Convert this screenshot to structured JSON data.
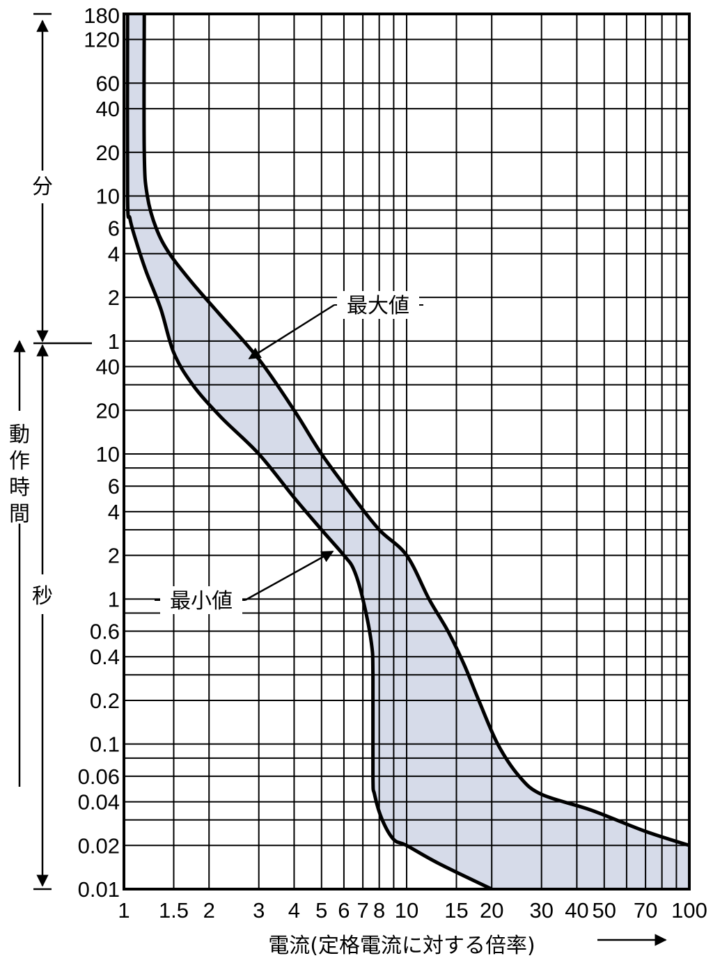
{
  "chart_data": {
    "type": "area",
    "xlabel": "電流(定格電流に対する倍率)",
    "x_scale": "log",
    "xlim": [
      1,
      100
    ],
    "y_scale": "log",
    "ylim_seconds": [
      0.01,
      10800
    ],
    "x_ticks": [
      {
        "value": 1,
        "label": "1"
      },
      {
        "value": 1.5,
        "label": "1.5"
      },
      {
        "value": 2,
        "label": "2"
      },
      {
        "value": 3,
        "label": "3"
      },
      {
        "value": 4,
        "label": "4"
      },
      {
        "value": 5,
        "label": "5"
      },
      {
        "value": 6,
        "label": "6"
      },
      {
        "value": 7,
        "label": "7"
      },
      {
        "value": 8,
        "label": "8"
      },
      {
        "value": 10,
        "label": "10"
      },
      {
        "value": 15,
        "label": "15"
      },
      {
        "value": 20,
        "label": "20"
      },
      {
        "value": 30,
        "label": "30"
      },
      {
        "value": 40,
        "label": "40"
      },
      {
        "value": 50,
        "label": "50"
      },
      {
        "value": 70,
        "label": "70"
      },
      {
        "value": 100,
        "label": "100"
      }
    ],
    "x_gridlines": [
      1,
      1.5,
      2,
      3,
      4,
      5,
      6,
      7,
      8,
      9,
      10,
      15,
      20,
      30,
      40,
      50,
      60,
      70,
      80,
      90,
      100
    ],
    "minute_ticks": [
      {
        "value": 180,
        "label": "180"
      },
      {
        "value": 120,
        "label": "120"
      },
      {
        "value": 60,
        "label": "60"
      },
      {
        "value": 40,
        "label": "40"
      },
      {
        "value": 20,
        "label": "20"
      },
      {
        "value": 10,
        "label": "10"
      },
      {
        "value": 6,
        "label": "6"
      },
      {
        "value": 4,
        "label": "4"
      },
      {
        "value": 2,
        "label": "2"
      },
      {
        "value": 1,
        "label": "1"
      }
    ],
    "second_ticks": [
      {
        "value": 40,
        "label": "40"
      },
      {
        "value": 20,
        "label": "20"
      },
      {
        "value": 10,
        "label": "10"
      },
      {
        "value": 6,
        "label": "6"
      },
      {
        "value": 4,
        "label": "4"
      },
      {
        "value": 2,
        "label": "2"
      },
      {
        "value": 1,
        "label": "1"
      },
      {
        "value": 0.6,
        "label": "0.6"
      },
      {
        "value": 0.4,
        "label": "0.4"
      },
      {
        "value": 0.2,
        "label": "0.2"
      },
      {
        "value": 0.1,
        "label": "0.1"
      },
      {
        "value": 0.06,
        "label": "0.06"
      },
      {
        "value": 0.04,
        "label": "0.04"
      },
      {
        "value": 0.02,
        "label": "0.02"
      },
      {
        "value": 0.01,
        "label": "0.01"
      }
    ],
    "y_gridlines_seconds": [
      10800,
      7200,
      3600,
      2400,
      1200,
      600,
      480,
      360,
      240,
      120,
      60,
      40,
      30,
      20,
      10,
      8,
      6,
      4,
      3,
      2,
      1,
      0.8,
      0.6,
      0.4,
      0.3,
      0.2,
      0.1,
      0.08,
      0.06,
      0.04,
      0.03,
      0.02,
      0.01
    ],
    "y_axis_labels": {
      "title": [
        "動",
        "作",
        "時",
        "間"
      ],
      "minutes": "分",
      "seconds": "秒"
    },
    "series": [
      {
        "name": "最大値",
        "x_unit": "times rated current",
        "y_unit": "seconds",
        "points": [
          [
            1.18,
            10800
          ],
          [
            1.18,
            1200
          ],
          [
            1.21,
            600
          ],
          [
            1.3,
            360
          ],
          [
            1.45,
            240
          ],
          [
            1.75,
            150
          ],
          [
            2.2,
            90
          ],
          [
            3,
            45
          ],
          [
            4,
            20
          ],
          [
            5,
            10
          ],
          [
            6.5,
            5
          ],
          [
            8,
            3
          ],
          [
            10,
            2
          ],
          [
            12,
            1
          ],
          [
            14,
            0.6
          ],
          [
            16,
            0.35
          ],
          [
            18,
            0.2
          ],
          [
            21,
            0.1
          ],
          [
            25,
            0.06
          ],
          [
            30,
            0.045
          ],
          [
            45,
            0.035
          ],
          [
            70,
            0.025
          ],
          [
            100,
            0.02
          ]
        ]
      },
      {
        "name": "最小値",
        "x_unit": "times rated current",
        "y_unit": "seconds",
        "points": [
          [
            1.03,
            10800
          ],
          [
            1.03,
            600
          ],
          [
            1.05,
            420
          ],
          [
            1.1,
            300
          ],
          [
            1.2,
            180
          ],
          [
            1.35,
            100
          ],
          [
            1.5,
            50
          ],
          [
            1.75,
            30
          ],
          [
            2.2,
            18
          ],
          [
            3,
            10
          ],
          [
            4,
            5
          ],
          [
            5,
            3
          ],
          [
            6,
            2
          ],
          [
            6.5,
            1.6
          ],
          [
            7,
            1.0
          ],
          [
            7.5,
            0.5
          ],
          [
            7.6,
            0.3
          ],
          [
            7.6,
            0.06
          ],
          [
            7.7,
            0.045
          ],
          [
            8.2,
            0.03
          ],
          [
            9,
            0.022
          ],
          [
            10,
            0.02
          ],
          [
            13,
            0.015
          ],
          [
            20,
            0.01
          ]
        ]
      }
    ],
    "band_fill": "#d6dbe9",
    "curve_color": "#000000",
    "annotations": [
      {
        "text": "最大値",
        "arrow_to_series": "最大値"
      },
      {
        "text": "最小値",
        "arrow_to_series": "最小値"
      }
    ],
    "direction_arrow": "→"
  }
}
